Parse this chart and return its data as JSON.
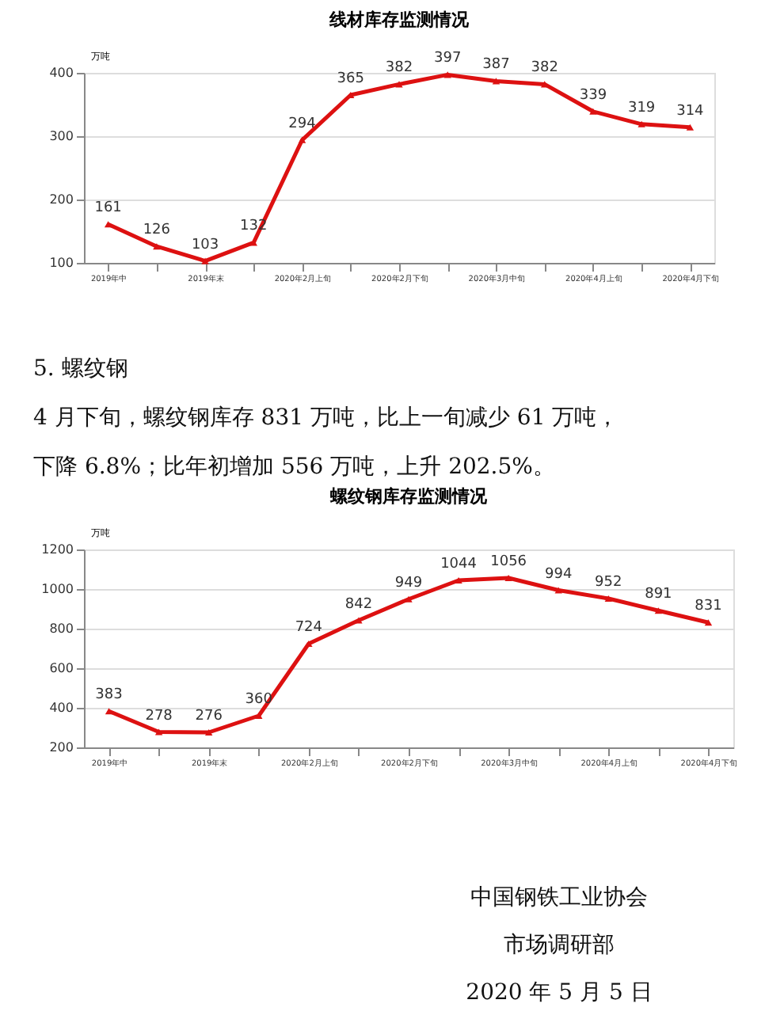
{
  "chart_data": [
    {
      "type": "line",
      "title": "线材库存监测情况",
      "ylabel": "万吨",
      "categories": [
        "2019年中",
        null,
        "2019年末",
        null,
        "2020年2月上旬",
        null,
        "2020年2月下旬",
        null,
        "2020年3月中旬",
        null,
        "2020年4月上旬",
        null,
        "2020年4月下旬"
      ],
      "series": [
        {
          "color": "#dd1111",
          "values": [
            161,
            126,
            103,
            132,
            294,
            365,
            382,
            397,
            387,
            382,
            339,
            319,
            314
          ]
        }
      ],
      "ylim": [
        100,
        400
      ],
      "yticks": [
        100,
        200,
        300,
        400
      ],
      "grid": "y",
      "marker": "triangle",
      "line_style": "solid",
      "data_labels": true,
      "annotations": [
        "5. 螺纹钢",
        "4 月下旬，螺纹钢库存 831 万吨，比上一旬减少 61 万吨，",
        "下降 6.8%；比年初增加 556 万吨，上升 202.5%。"
      ]
    },
    {
      "type": "line",
      "title": "螺纹钢库存监测情况",
      "ylabel": "万吨",
      "categories": [
        "2019年中",
        null,
        "2019年末",
        null,
        "2020年2月上旬",
        null,
        "2020年2月下旬",
        null,
        "2020年3月中旬",
        null,
        "2020年4月上旬",
        null,
        "2020年4月下旬"
      ],
      "series": [
        {
          "color": "#dd1111",
          "values": [
            383,
            278,
            276,
            360,
            724,
            842,
            949,
            1044,
            1056,
            994,
            952,
            891,
            831
          ]
        }
      ],
      "ylim": [
        200,
        1200
      ],
      "yticks": [
        200,
        400,
        600,
        800,
        1000,
        1200
      ],
      "grid": "y",
      "marker": "triangle",
      "line_style": "solid",
      "data_labels": true,
      "annotations": [
        "中国钢铁工业协会",
        "市场调研部",
        "2020 年 5 月 5 日"
      ]
    }
  ]
}
